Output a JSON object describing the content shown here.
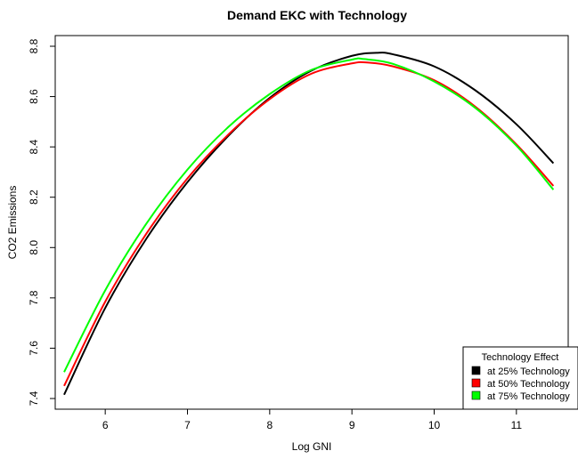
{
  "chart_data": {
    "type": "line",
    "title": "Demand EKC with Technology",
    "xlabel": "Log GNI",
    "ylabel": "CO2 Emissions",
    "xlim": [
      5.5,
      11.5
    ],
    "ylim": [
      7.4,
      8.8
    ],
    "xticks": [
      6,
      7,
      8,
      9,
      10,
      11
    ],
    "yticks": [
      7.4,
      7.6,
      7.8,
      8.0,
      8.2,
      8.4,
      8.6,
      8.8
    ],
    "ytick_labels": [
      "7.4",
      "7.6",
      "7.8",
      "8.0",
      "8.2",
      "8.4",
      "8.6",
      "8.8"
    ],
    "grid": false,
    "legend": {
      "title": "Technology Effect",
      "position": "bottom-right"
    },
    "series": [
      {
        "name": "at 25% Technology",
        "color": "#000000",
        "x": [
          5.5,
          6.0,
          6.5,
          7.0,
          7.5,
          8.0,
          8.5,
          9.0,
          9.3,
          9.5,
          10.0,
          10.5,
          11.0,
          11.45
        ],
        "y": [
          7.415,
          7.76,
          8.035,
          8.26,
          8.445,
          8.595,
          8.702,
          8.762,
          8.774,
          8.768,
          8.72,
          8.625,
          8.49,
          8.335
        ]
      },
      {
        "name": "at 50% Technology",
        "color": "#ff0000",
        "x": [
          5.5,
          6.0,
          6.5,
          7.0,
          7.5,
          8.0,
          8.5,
          9.0,
          9.2,
          9.5,
          10.0,
          10.5,
          11.0,
          11.45
        ],
        "y": [
          7.45,
          7.785,
          8.055,
          8.275,
          8.45,
          8.59,
          8.69,
          8.732,
          8.735,
          8.72,
          8.665,
          8.56,
          8.41,
          8.245
        ]
      },
      {
        "name": "at 75% Technology",
        "color": "#00ff00",
        "x": [
          5.5,
          6.0,
          6.5,
          7.0,
          7.5,
          8.0,
          8.5,
          9.0,
          9.15,
          9.5,
          10.0,
          10.5,
          11.0,
          11.45
        ],
        "y": [
          7.505,
          7.83,
          8.095,
          8.31,
          8.48,
          8.61,
          8.705,
          8.747,
          8.749,
          8.73,
          8.66,
          8.555,
          8.405,
          8.23
        ]
      }
    ]
  }
}
